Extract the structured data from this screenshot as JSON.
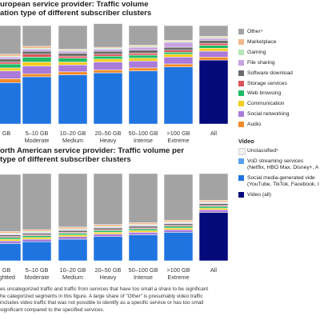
{
  "chart_data": [
    {
      "type": "bar",
      "stacked": true,
      "title_lines": [
        "uropean service provider: Traffic volume",
        "ation type of different subscriber clusters"
      ],
      "categories": [
        [
          "GB",
          ""
        ],
        [
          "5–10 GB",
          "Moderate"
        ],
        [
          "10–20 GB",
          "Medium"
        ],
        [
          "20–50 GB",
          "Heavy"
        ],
        [
          "50–100 GB",
          "Intense"
        ],
        [
          ">100 GB",
          "Extreme"
        ],
        [
          "All",
          ""
        ]
      ],
      "ylim": [
        0,
        100
      ],
      "series": [
        {
          "key": "video_all",
          "values": [
            0,
            0,
            0,
            0,
            0,
            0,
            65
          ]
        },
        {
          "key": "social_video",
          "values": [
            42,
            48,
            50,
            52,
            54,
            58,
            0
          ]
        },
        {
          "key": "vod",
          "values": [
            0,
            0,
            0,
            0,
            0,
            0,
            0
          ]
        },
        {
          "key": "audio",
          "values": [
            4,
            3,
            3,
            3,
            3,
            3,
            3
          ]
        },
        {
          "key": "social_networking",
          "values": [
            8,
            8,
            7,
            8,
            7,
            7,
            6
          ]
        },
        {
          "key": "communication",
          "values": [
            3,
            4,
            3,
            3,
            3,
            3,
            3
          ]
        },
        {
          "key": "web_browsing",
          "values": [
            4,
            5,
            4,
            3,
            3,
            2,
            3
          ]
        },
        {
          "key": "storage",
          "values": [
            2,
            3,
            2,
            2,
            2,
            2,
            2
          ]
        },
        {
          "key": "software_download",
          "values": [
            3,
            3,
            3,
            3,
            3,
            3,
            3
          ]
        },
        {
          "key": "file_sharing",
          "values": [
            2,
            2,
            2,
            2,
            3,
            5,
            2
          ]
        },
        {
          "key": "gaming",
          "values": [
            1,
            1,
            1,
            1,
            1,
            1,
            1
          ]
        },
        {
          "key": "marketplace",
          "values": [
            2,
            2,
            1,
            1,
            1,
            1,
            1
          ]
        },
        {
          "key": "other",
          "values": [
            29,
            21,
            24,
            24,
            20,
            15,
            11
          ]
        }
      ]
    },
    {
      "type": "bar",
      "stacked": true,
      "title_lines": [
        "orth American service provider: Traffic volume per",
        "type of different subscriber clusters"
      ],
      "categories": [
        [
          "GB",
          "ightted"
        ],
        [
          "5–10 GB",
          "Moderate"
        ],
        [
          "10–20 GB",
          "Medium"
        ],
        [
          "20–50 GB",
          "Heavy"
        ],
        [
          "50–100 GB",
          "Intense"
        ],
        [
          ">100 GB",
          "Extreme"
        ],
        [
          "All",
          ""
        ]
      ],
      "ylim": [
        0,
        100
      ],
      "series": [
        {
          "key": "video_all",
          "values": [
            0,
            0,
            0,
            0,
            0,
            0,
            56
          ]
        },
        {
          "key": "social_video",
          "values": [
            20,
            22,
            25,
            28,
            30,
            33,
            0
          ]
        },
        {
          "key": "vod",
          "values": [
            0,
            0,
            0,
            0,
            0,
            0,
            0
          ]
        },
        {
          "key": "audio",
          "values": [
            0,
            0,
            0,
            0,
            0,
            0,
            0
          ]
        },
        {
          "key": "social_networking",
          "values": [
            3,
            3,
            3,
            3,
            3,
            3,
            3
          ]
        },
        {
          "key": "communication",
          "values": [
            2,
            2,
            2,
            2,
            2,
            2,
            2
          ]
        },
        {
          "key": "web_browsing",
          "values": [
            2,
            2,
            2,
            2,
            2,
            2,
            2
          ]
        },
        {
          "key": "storage",
          "values": [
            1,
            1,
            1,
            1,
            1,
            1,
            1
          ]
        },
        {
          "key": "software_download",
          "values": [
            2,
            2,
            2,
            2,
            2,
            2,
            2
          ]
        },
        {
          "key": "file_sharing",
          "values": [
            1,
            1,
            1,
            1,
            1,
            1,
            1
          ]
        },
        {
          "key": "gaming",
          "values": [
            1,
            1,
            1,
            1,
            1,
            1,
            1
          ]
        },
        {
          "key": "marketplace",
          "values": [
            2,
            2,
            2,
            2,
            2,
            2,
            2
          ]
        },
        {
          "key": "other",
          "values": [
            66,
            65,
            62,
            59,
            57,
            53,
            31
          ]
        }
      ]
    }
  ],
  "legend": {
    "items": [
      {
        "key": "other",
        "label": "Other⁴",
        "color": "#a3a3a3"
      },
      {
        "key": "marketplace",
        "label": "Marketplace",
        "color": "#f2b98c"
      },
      {
        "key": "gaming",
        "label": "Gaming",
        "color": "#b5e6b8"
      },
      {
        "key": "file_sharing",
        "label": "File sharing",
        "color": "#c8a2e0"
      },
      {
        "key": "software_download",
        "label": "Software download",
        "color": "#6b6b6b"
      },
      {
        "key": "storage",
        "label": "Storage services",
        "color": "#e0525a"
      },
      {
        "key": "web_browsing",
        "label": "Web browsing",
        "color": "#1fba66"
      },
      {
        "key": "communication",
        "label": "Communication",
        "color": "#f5cd23"
      },
      {
        "key": "social_networking",
        "label": "Social networking",
        "color": "#a97ad9"
      },
      {
        "key": "audio",
        "label": "Audio",
        "color": "#f28b2a"
      }
    ],
    "video_heading": "Video",
    "video_items": [
      {
        "key": "unclassified",
        "lines": [
          "Unclassified⁵"
        ],
        "color": "#f0f0f0"
      },
      {
        "key": "vod",
        "lines": [
          "VoD streaming services",
          "(Netflix, HBO Max, Disney+, A"
        ],
        "color": "#5aa0ee"
      },
      {
        "key": "social_video",
        "lines": [
          "Social media-generated vide",
          "(YouTube, TikTok, Facebook, I"
        ],
        "color": "#1f74e0"
      },
      {
        "key": "video_all",
        "lines": [
          "Video (all)"
        ],
        "color": "#040a7a"
      }
    ]
  },
  "footnote": {
    "lines": [
      "es uncategorized traffic and traffic from services that have too small a share to be significant",
      "he categorized segments in this figure. A large share of \"Other\" is presumably video traffic",
      " includes video traffic that was not possible to identify as a specific service or has too small",
      "significant compared to the specified services."
    ]
  }
}
